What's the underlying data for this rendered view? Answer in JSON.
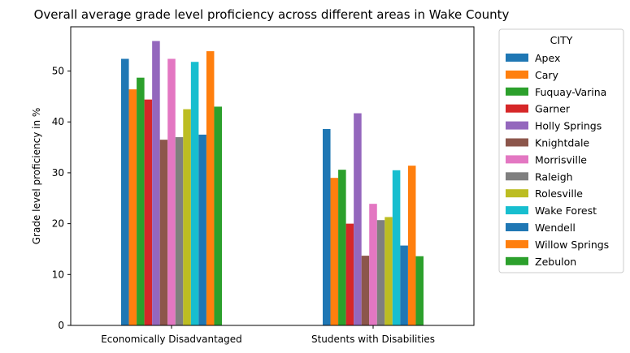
{
  "chart_data": {
    "type": "bar",
    "title": "Overall average grade level proficiency across different areas in Wake County",
    "xlabel": "",
    "ylabel": "Grade level proficiency in %",
    "categories": [
      "Economically Disadvantaged",
      "Students with Disabilities"
    ],
    "yticks": [
      0,
      10,
      20,
      30,
      40,
      50
    ],
    "ylim": [
      0,
      58.7
    ],
    "grid": false,
    "legend": {
      "title": "CITY",
      "placement": "outside-right"
    },
    "series": [
      {
        "name": "Apex",
        "color": "#1f77b4",
        "values": [
          52.4,
          38.6
        ]
      },
      {
        "name": "Cary",
        "color": "#ff7f0e",
        "values": [
          46.4,
          29.0
        ]
      },
      {
        "name": "Fuquay-Varina",
        "color": "#2ca02c",
        "values": [
          48.7,
          30.6
        ]
      },
      {
        "name": "Garner",
        "color": "#d62728",
        "values": [
          44.4,
          20.0
        ]
      },
      {
        "name": "Holly Springs",
        "color": "#9467bd",
        "values": [
          55.9,
          41.7
        ]
      },
      {
        "name": "Knightdale",
        "color": "#8c564b",
        "values": [
          36.5,
          13.7
        ]
      },
      {
        "name": "Morrisville",
        "color": "#e377c2",
        "values": [
          52.4,
          23.9
        ]
      },
      {
        "name": "Raleigh",
        "color": "#7f7f7f",
        "values": [
          37.0,
          20.7
        ]
      },
      {
        "name": "Rolesville",
        "color": "#bcbd22",
        "values": [
          42.5,
          21.3
        ]
      },
      {
        "name": "Wake Forest",
        "color": "#17becf",
        "values": [
          51.8,
          30.5
        ]
      },
      {
        "name": "Wendell",
        "color": "#1f77b4",
        "values": [
          37.5,
          15.7
        ]
      },
      {
        "name": "Willow Springs",
        "color": "#ff7f0e",
        "values": [
          53.9,
          31.4
        ]
      },
      {
        "name": "Zebulon",
        "color": "#2ca02c",
        "values": [
          43.0,
          13.6
        ]
      }
    ]
  }
}
